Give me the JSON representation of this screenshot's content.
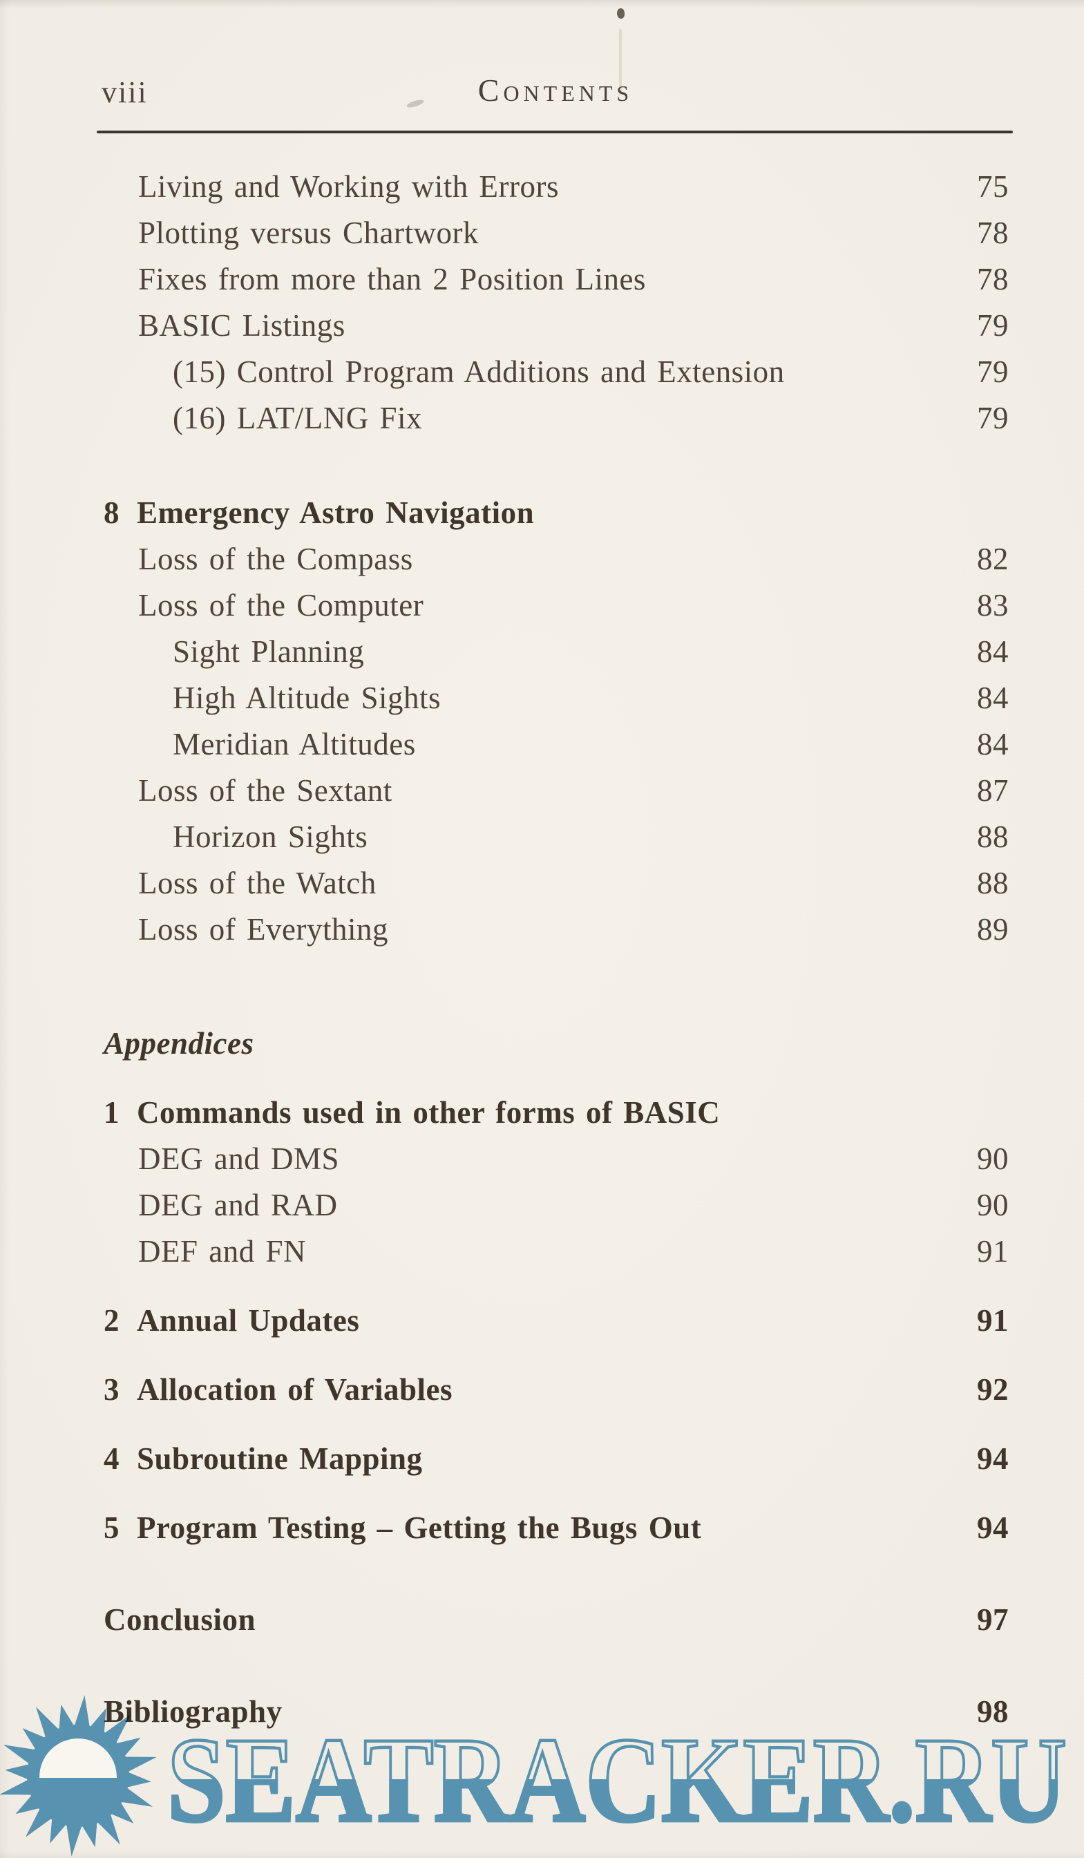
{
  "page": {
    "folio": "viii",
    "running_head": "Contents",
    "colors": {
      "bg": "#f0ebe2",
      "ink": "#4e443a",
      "heading": "#3f352b",
      "rule": "#3b352e",
      "blue": "#5c9ec5",
      "dome": "#f9f6ef"
    }
  },
  "toc": {
    "entries": [
      {
        "label": "Living and Working with Errors",
        "page": "75",
        "level": 1
      },
      {
        "label": "Plotting versus Chartwork",
        "page": "78",
        "level": 1
      },
      {
        "label": "Fixes from more than 2 Position Lines",
        "page": "78",
        "level": 1
      },
      {
        "label": "BASIC Listings",
        "page": "79",
        "level": 1
      },
      {
        "label": "(15) Control Program Additions and Extension",
        "page": "79",
        "level": 2
      },
      {
        "label": "(16) LAT/LNG Fix",
        "page": "79",
        "level": 2
      },
      {
        "num": "8",
        "label": "Emergency Astro Navigation",
        "level": 0,
        "bold": true,
        "gap": "before-section"
      },
      {
        "label": "Loss of the Compass",
        "page": "82",
        "level": 1
      },
      {
        "label": "Loss of the Computer",
        "page": "83",
        "level": 1
      },
      {
        "label": "Sight Planning",
        "page": "84",
        "level": 2
      },
      {
        "label": "High Altitude Sights",
        "page": "84",
        "level": 2
      },
      {
        "label": "Meridian Altitudes",
        "page": "84",
        "level": 2
      },
      {
        "label": "Loss of the Sextant",
        "page": "87",
        "level": 1
      },
      {
        "label": "Horizon Sights",
        "page": "88",
        "level": 2
      },
      {
        "label": "Loss of the Watch",
        "page": "88",
        "level": 1
      },
      {
        "label": "Loss of Everything",
        "page": "89",
        "level": 1
      },
      {
        "label": "Appendices",
        "level": -1,
        "bold": true,
        "italic": true,
        "gap": "before-part"
      },
      {
        "num": "1",
        "label": "Commands used in other forms of BASIC",
        "level": 0,
        "bold": true,
        "gap": "before-heading"
      },
      {
        "label": "DEG and DMS",
        "page": "90",
        "level": 1
      },
      {
        "label": "DEG and RAD",
        "page": "90",
        "level": 1
      },
      {
        "label": "DEF and FN",
        "page": "91",
        "level": 1
      },
      {
        "num": "2",
        "label": "Annual Updates",
        "page": "91",
        "level": 0,
        "bold": true,
        "gap": "before-heading"
      },
      {
        "num": "3",
        "label": "Allocation of Variables",
        "page": "92",
        "level": 0,
        "bold": true,
        "gap": "before-heading"
      },
      {
        "num": "4",
        "label": "Subroutine Mapping",
        "page": "94",
        "level": 0,
        "bold": true,
        "gap": "before-heading"
      },
      {
        "num": "5",
        "label": "Program Testing – Getting the Bugs Out",
        "page": "94",
        "level": 0,
        "bold": true,
        "gap": "before-heading"
      },
      {
        "label": "Conclusion",
        "page": "97",
        "level": -1,
        "bold": true,
        "gap": "before-end"
      },
      {
        "label": "Bibliography",
        "page": "98",
        "level": -1,
        "bold": true,
        "gap": "before-end"
      }
    ]
  },
  "watermark": {
    "text": "SEATRACKER.RU",
    "logo": "sun-over-sea-icon"
  }
}
